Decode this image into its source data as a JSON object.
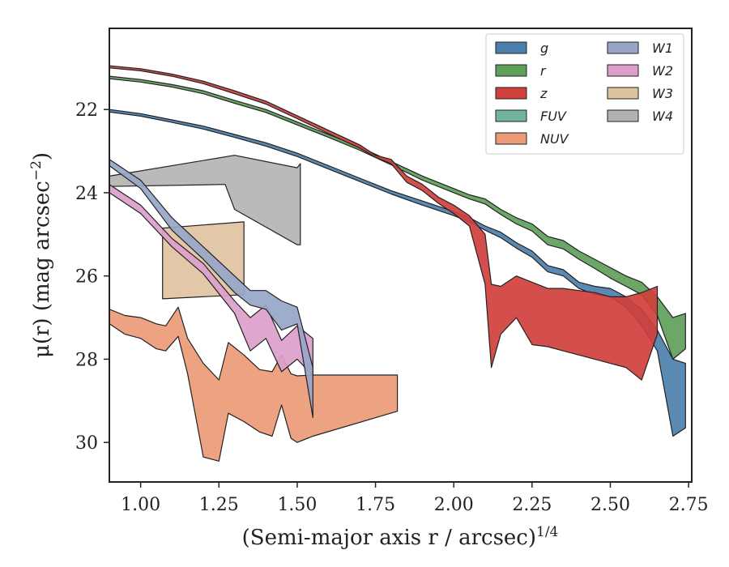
{
  "chart_data": {
    "type": "area",
    "xlabel": "(Semi-major axis r / arcsec)",
    "xlabel_super": "1/4",
    "ylabel": "μ(r) (mag arcsec",
    "ylabel_super": "−2",
    "ylabel_close": ")",
    "xlim": [
      0.9,
      2.76
    ],
    "ylim": [
      30.95,
      20.05
    ],
    "y_inverted": true,
    "grid": false,
    "legend_position": "top-right",
    "legend_columns": 2,
    "xticks": [
      1.0,
      1.25,
      1.5,
      1.75,
      2.0,
      2.25,
      2.5,
      2.75
    ],
    "xtick_labels": [
      "1.00",
      "1.25",
      "1.50",
      "1.75",
      "2.00",
      "2.25",
      "2.50",
      "2.75"
    ],
    "yticks": [
      22,
      24,
      26,
      28,
      30
    ],
    "ytick_labels": [
      "22",
      "24",
      "26",
      "28",
      "30"
    ],
    "series": [
      {
        "name": "g",
        "color": "#4c7fab",
        "upper": [
          [
            0.9,
            22.0
          ],
          [
            1.0,
            22.1
          ],
          [
            1.1,
            22.25
          ],
          [
            1.2,
            22.4
          ],
          [
            1.3,
            22.6
          ],
          [
            1.4,
            22.8
          ],
          [
            1.5,
            23.05
          ],
          [
            1.6,
            23.35
          ],
          [
            1.7,
            23.65
          ],
          [
            1.8,
            23.95
          ],
          [
            1.9,
            24.2
          ],
          [
            2.0,
            24.45
          ],
          [
            2.05,
            24.6
          ],
          [
            2.1,
            24.8
          ],
          [
            2.15,
            24.95
          ],
          [
            2.2,
            25.2
          ],
          [
            2.25,
            25.4
          ],
          [
            2.3,
            25.75
          ],
          [
            2.35,
            25.85
          ],
          [
            2.4,
            26.15
          ],
          [
            2.45,
            26.25
          ],
          [
            2.5,
            26.3
          ],
          [
            2.55,
            26.5
          ],
          [
            2.6,
            26.8
          ],
          [
            2.65,
            27.3
          ],
          [
            2.7,
            28.0
          ],
          [
            2.74,
            28.1
          ]
        ],
        "lower": [
          [
            0.9,
            22.06
          ],
          [
            1.0,
            22.16
          ],
          [
            1.1,
            22.31
          ],
          [
            1.2,
            22.47
          ],
          [
            1.3,
            22.67
          ],
          [
            1.4,
            22.88
          ],
          [
            1.5,
            23.13
          ],
          [
            1.6,
            23.43
          ],
          [
            1.7,
            23.73
          ],
          [
            1.8,
            24.03
          ],
          [
            1.9,
            24.3
          ],
          [
            2.0,
            24.55
          ],
          [
            2.05,
            24.7
          ],
          [
            2.1,
            24.9
          ],
          [
            2.15,
            25.08
          ],
          [
            2.2,
            25.33
          ],
          [
            2.25,
            25.55
          ],
          [
            2.3,
            25.9
          ],
          [
            2.35,
            26.0
          ],
          [
            2.4,
            26.3
          ],
          [
            2.45,
            26.45
          ],
          [
            2.5,
            26.5
          ],
          [
            2.55,
            26.75
          ],
          [
            2.6,
            27.2
          ],
          [
            2.65,
            27.8
          ],
          [
            2.7,
            29.85
          ],
          [
            2.74,
            29.65
          ]
        ]
      },
      {
        "name": "r",
        "color": "#5fa05a",
        "upper": [
          [
            0.9,
            21.2
          ],
          [
            1.0,
            21.28
          ],
          [
            1.1,
            21.4
          ],
          [
            1.2,
            21.55
          ],
          [
            1.3,
            21.78
          ],
          [
            1.4,
            22.0
          ],
          [
            1.5,
            22.3
          ],
          [
            1.6,
            22.6
          ],
          [
            1.7,
            22.9
          ],
          [
            1.8,
            23.25
          ],
          [
            1.9,
            23.6
          ],
          [
            2.0,
            23.9
          ],
          [
            2.05,
            24.05
          ],
          [
            2.1,
            24.15
          ],
          [
            2.15,
            24.4
          ],
          [
            2.2,
            24.6
          ],
          [
            2.25,
            24.75
          ],
          [
            2.3,
            25.05
          ],
          [
            2.35,
            25.15
          ],
          [
            2.4,
            25.4
          ],
          [
            2.45,
            25.6
          ],
          [
            2.5,
            25.8
          ],
          [
            2.55,
            26.0
          ],
          [
            2.6,
            26.15
          ],
          [
            2.65,
            26.5
          ],
          [
            2.7,
            27.0
          ],
          [
            2.74,
            26.9
          ]
        ],
        "lower": [
          [
            0.9,
            21.26
          ],
          [
            1.0,
            21.34
          ],
          [
            1.1,
            21.46
          ],
          [
            1.2,
            21.62
          ],
          [
            1.3,
            21.85
          ],
          [
            1.4,
            22.07
          ],
          [
            1.5,
            22.37
          ],
          [
            1.6,
            22.67
          ],
          [
            1.7,
            22.98
          ],
          [
            1.8,
            23.33
          ],
          [
            1.9,
            23.7
          ],
          [
            2.0,
            24.0
          ],
          [
            2.05,
            24.15
          ],
          [
            2.1,
            24.27
          ],
          [
            2.15,
            24.52
          ],
          [
            2.2,
            24.75
          ],
          [
            2.25,
            24.92
          ],
          [
            2.3,
            25.25
          ],
          [
            2.35,
            25.35
          ],
          [
            2.4,
            25.6
          ],
          [
            2.45,
            25.82
          ],
          [
            2.5,
            26.05
          ],
          [
            2.55,
            26.25
          ],
          [
            2.6,
            26.45
          ],
          [
            2.65,
            26.95
          ],
          [
            2.7,
            28.0
          ],
          [
            2.74,
            27.75
          ]
        ]
      },
      {
        "name": "z",
        "color": "#d03f3c",
        "upper": [
          [
            0.9,
            20.95
          ],
          [
            1.0,
            21.02
          ],
          [
            1.1,
            21.15
          ],
          [
            1.2,
            21.32
          ],
          [
            1.3,
            21.55
          ],
          [
            1.4,
            21.8
          ],
          [
            1.5,
            22.15
          ],
          [
            1.6,
            22.5
          ],
          [
            1.7,
            22.85
          ],
          [
            1.75,
            23.1
          ],
          [
            1.8,
            23.2
          ],
          [
            1.85,
            23.6
          ],
          [
            1.9,
            23.8
          ],
          [
            1.95,
            24.1
          ],
          [
            2.0,
            24.3
          ],
          [
            2.05,
            24.55
          ],
          [
            2.1,
            25.0
          ],
          [
            2.12,
            26.2
          ],
          [
            2.15,
            26.25
          ],
          [
            2.2,
            26.0
          ],
          [
            2.25,
            26.15
          ],
          [
            2.3,
            26.3
          ],
          [
            2.35,
            26.3
          ],
          [
            2.4,
            26.35
          ],
          [
            2.45,
            26.4
          ],
          [
            2.5,
            26.5
          ],
          [
            2.55,
            26.5
          ],
          [
            2.6,
            26.4
          ],
          [
            2.65,
            26.25
          ]
        ],
        "lower": [
          [
            0.9,
            21.0
          ],
          [
            1.0,
            21.07
          ],
          [
            1.1,
            21.2
          ],
          [
            1.2,
            21.38
          ],
          [
            1.3,
            21.62
          ],
          [
            1.4,
            21.87
          ],
          [
            1.5,
            22.22
          ],
          [
            1.6,
            22.58
          ],
          [
            1.7,
            22.93
          ],
          [
            1.75,
            23.15
          ],
          [
            1.8,
            23.3
          ],
          [
            1.85,
            23.75
          ],
          [
            1.9,
            23.95
          ],
          [
            1.95,
            24.25
          ],
          [
            2.0,
            24.5
          ],
          [
            2.05,
            24.8
          ],
          [
            2.1,
            26.2
          ],
          [
            2.12,
            28.2
          ],
          [
            2.15,
            27.4
          ],
          [
            2.2,
            27.0
          ],
          [
            2.25,
            27.65
          ],
          [
            2.3,
            27.7
          ],
          [
            2.35,
            27.8
          ],
          [
            2.4,
            27.9
          ],
          [
            2.45,
            28.0
          ],
          [
            2.5,
            28.1
          ],
          [
            2.55,
            28.2
          ],
          [
            2.6,
            28.5
          ],
          [
            2.65,
            27.4
          ]
        ]
      },
      {
        "name": "FUV",
        "color": "#73b4a0",
        "upper": [],
        "lower": []
      },
      {
        "name": "NUV",
        "color": "#eb9a76",
        "upper": [
          [
            0.9,
            26.8
          ],
          [
            0.95,
            26.95
          ],
          [
            1.0,
            27.0
          ],
          [
            1.05,
            27.15
          ],
          [
            1.08,
            27.2
          ],
          [
            1.12,
            26.75
          ],
          [
            1.15,
            27.5
          ],
          [
            1.2,
            28.1
          ],
          [
            1.25,
            28.5
          ],
          [
            1.28,
            27.6
          ],
          [
            1.33,
            27.9
          ],
          [
            1.38,
            28.25
          ],
          [
            1.42,
            28.3
          ],
          [
            1.45,
            27.9
          ],
          [
            1.48,
            28.35
          ],
          [
            1.5,
            28.4
          ],
          [
            1.55,
            28.38
          ],
          [
            1.82,
            28.38
          ]
        ],
        "lower": [
          [
            0.9,
            27.15
          ],
          [
            0.95,
            27.4
          ],
          [
            1.0,
            27.5
          ],
          [
            1.05,
            27.75
          ],
          [
            1.08,
            27.8
          ],
          [
            1.12,
            27.45
          ],
          [
            1.15,
            28.35
          ],
          [
            1.2,
            30.35
          ],
          [
            1.25,
            30.45
          ],
          [
            1.28,
            29.3
          ],
          [
            1.33,
            29.5
          ],
          [
            1.38,
            29.75
          ],
          [
            1.42,
            29.85
          ],
          [
            1.45,
            29.1
          ],
          [
            1.48,
            29.9
          ],
          [
            1.5,
            30.0
          ],
          [
            1.55,
            29.85
          ],
          [
            1.82,
            29.25
          ]
        ]
      },
      {
        "name": "W1",
        "color": "#97a6c8",
        "upper": [
          [
            0.9,
            23.2
          ],
          [
            1.0,
            23.7
          ],
          [
            1.1,
            24.6
          ],
          [
            1.2,
            25.3
          ],
          [
            1.3,
            26.0
          ],
          [
            1.35,
            26.35
          ],
          [
            1.4,
            26.35
          ],
          [
            1.45,
            26.6
          ],
          [
            1.5,
            26.75
          ],
          [
            1.55,
            28.2
          ]
        ],
        "lower": [
          [
            0.9,
            23.35
          ],
          [
            1.0,
            23.9
          ],
          [
            1.1,
            24.9
          ],
          [
            1.2,
            25.6
          ],
          [
            1.3,
            26.4
          ],
          [
            1.35,
            26.7
          ],
          [
            1.4,
            26.8
          ],
          [
            1.45,
            27.3
          ],
          [
            1.5,
            27.15
          ],
          [
            1.55,
            29.4
          ]
        ]
      },
      {
        "name": "W2",
        "color": "#dc9fcb",
        "upper": [
          [
            0.9,
            23.8
          ],
          [
            1.0,
            24.3
          ],
          [
            1.1,
            25.1
          ],
          [
            1.2,
            25.7
          ],
          [
            1.3,
            26.6
          ],
          [
            1.35,
            27.0
          ],
          [
            1.4,
            26.7
          ],
          [
            1.45,
            27.55
          ],
          [
            1.5,
            27.2
          ],
          [
            1.55,
            27.5
          ]
        ],
        "lower": [
          [
            0.9,
            24.0
          ],
          [
            1.0,
            24.5
          ],
          [
            1.1,
            25.3
          ],
          [
            1.2,
            25.95
          ],
          [
            1.3,
            26.9
          ],
          [
            1.35,
            27.8
          ],
          [
            1.4,
            27.5
          ],
          [
            1.45,
            28.3
          ],
          [
            1.5,
            28.0
          ],
          [
            1.55,
            28.4
          ]
        ]
      },
      {
        "name": "W3",
        "color": "#dfc29f",
        "upper": [
          [
            1.07,
            24.85
          ],
          [
            1.33,
            24.7
          ]
        ],
        "lower": [
          [
            1.07,
            26.55
          ],
          [
            1.33,
            26.45
          ]
        ]
      },
      {
        "name": "W4",
        "color": "#b2b2b2",
        "upper": [
          [
            0.9,
            23.6
          ],
          [
            1.3,
            23.1
          ],
          [
            1.5,
            23.4
          ],
          [
            1.51,
            23.3
          ]
        ],
        "lower": [
          [
            0.9,
            23.85
          ],
          [
            1.27,
            23.8
          ],
          [
            1.3,
            24.4
          ],
          [
            1.5,
            25.25
          ],
          [
            1.51,
            25.25
          ]
        ]
      }
    ]
  }
}
